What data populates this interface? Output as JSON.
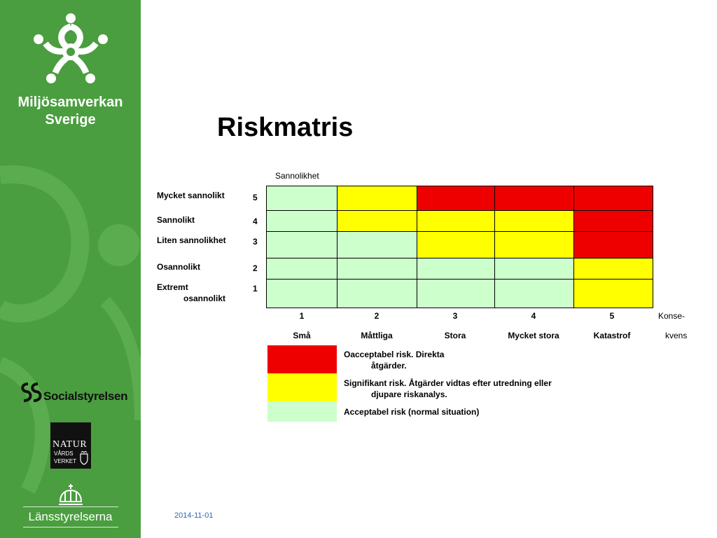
{
  "colors": {
    "red": "#ee0000",
    "yellow": "#ffff00",
    "green": "#ccffcc",
    "sidebar": "#4a9e3f"
  },
  "sidebar": {
    "brand_line1": "Miljösamverkan",
    "brand_line2": "Sverige",
    "social": "Socialstyrelsen",
    "natur_line1": "NATUR",
    "natur_line2": "VÅRDS",
    "natur_line3": "VERKET",
    "lans": "Länsstyrelserna"
  },
  "title": "Riskmatris",
  "axis_top": "Sannolikhet",
  "rows": [
    {
      "label": "Mycket sannolikt",
      "num": "5",
      "cells": [
        "green",
        "yellow",
        "red",
        "red",
        "red"
      ]
    },
    {
      "label": "Sannolikt",
      "num": "4",
      "cells": [
        "green",
        "yellow",
        "yellow",
        "yellow",
        "red"
      ]
    },
    {
      "label": "Liten sannolikhet",
      "num": "3",
      "cells": [
        "green",
        "green",
        "yellow",
        "yellow",
        "red"
      ]
    },
    {
      "label": "Osannolikt",
      "num": "2",
      "cells": [
        "green",
        "green",
        "green",
        "green",
        "yellow"
      ]
    },
    {
      "label_l1": "Extremt",
      "label_l2": "osannolikt",
      "num": "1",
      "cells": [
        "green",
        "green",
        "green",
        "green",
        "yellow"
      ]
    }
  ],
  "columns": [
    {
      "num": "1",
      "name": "Små"
    },
    {
      "num": "2",
      "name": "Måttliga"
    },
    {
      "num": "3",
      "name": "Stora"
    },
    {
      "num": "4",
      "name": "Mycket stora"
    },
    {
      "num": "5",
      "name": "Katastrof"
    }
  ],
  "axis_right_line1": "Konse-",
  "axis_right_line2": "kvens",
  "legend": [
    {
      "color": "red",
      "line1": "Oacceptabel risk. Direkta",
      "line2": "åtgärder."
    },
    {
      "color": "yellow",
      "line1": "Signifikant risk. Åtgärder vidtas efter utredning eller",
      "line2": "djupare riskanalys."
    },
    {
      "color": "green",
      "line1": "Acceptabel risk (normal situation)",
      "line2": ""
    }
  ],
  "date": "2014-11-01"
}
